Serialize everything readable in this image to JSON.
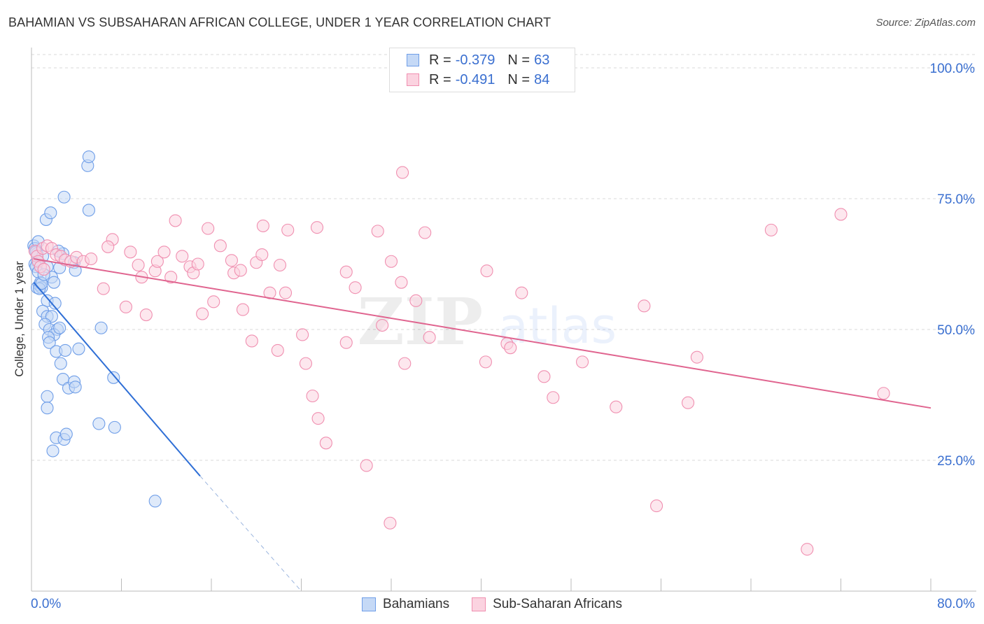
{
  "title": "BAHAMIAN VS SUBSAHARAN AFRICAN COLLEGE, UNDER 1 YEAR CORRELATION CHART",
  "source": "Source: ZipAtlas.com",
  "watermark": {
    "zip": "ZIP",
    "atlas": "atlas"
  },
  "legend_top": {
    "rows": [
      {
        "r_label": "R =",
        "r_value": "-0.379",
        "n_label": "N =",
        "n_value": "63",
        "color": "#6f9ee8"
      },
      {
        "r_label": "R =",
        "r_value": "-0.491",
        "n_label": "N =",
        "n_value": "84",
        "color": "#f08fb0"
      }
    ]
  },
  "legend_bottom": [
    {
      "label": "Bahamians",
      "color": "#6f9ee8"
    },
    {
      "label": "Sub-Saharan Africans",
      "color": "#f08fb0"
    }
  ],
  "chart_data": {
    "type": "scatter",
    "title": "BAHAMIAN VS SUBSAHARAN AFRICAN COLLEGE, UNDER 1 YEAR CORRELATION CHART",
    "xlabel": "",
    "ylabel": "College, Under 1 year",
    "xlim": [
      0,
      80
    ],
    "ylim": [
      0,
      100
    ],
    "x_tick_labels": [
      "0.0%",
      "80.0%"
    ],
    "y_tick_labels": [
      "25.0%",
      "50.0%",
      "75.0%",
      "100.0%"
    ],
    "y_ticks": [
      25,
      50,
      75,
      100
    ],
    "grid": true,
    "legend_position": "top-center",
    "series": [
      {
        "name": "Bahamians",
        "color": "#6f9ee8",
        "line_color": "#2f6fd6",
        "R": -0.379,
        "N": 63,
        "trend": {
          "x_start": 0.2,
          "y_start": 59.0,
          "x_solid_end": 15.0,
          "y_solid_end": 22.0,
          "x_dash_end": 24.0,
          "y_dash_end": 0.0
        },
        "points": [
          [
            0.2,
            66.0
          ],
          [
            0.3,
            65.5
          ],
          [
            0.4,
            65.0
          ],
          [
            0.5,
            64.5
          ],
          [
            0.5,
            63.0
          ],
          [
            0.6,
            66.8
          ],
          [
            0.4,
            64.8
          ],
          [
            0.3,
            62.5
          ],
          [
            0.4,
            62.0
          ],
          [
            0.6,
            61.0
          ],
          [
            0.5,
            58.0
          ],
          [
            0.7,
            58.5
          ],
          [
            0.8,
            59.0
          ],
          [
            0.9,
            58.0
          ],
          [
            1.0,
            64.0
          ],
          [
            1.4,
            62.0
          ],
          [
            1.8,
            60.0
          ],
          [
            2.0,
            59.0
          ],
          [
            2.5,
            61.8
          ],
          [
            2.8,
            64.5
          ],
          [
            2.4,
            65.0
          ],
          [
            3.8,
            62.8
          ],
          [
            3.9,
            61.3
          ],
          [
            1.3,
            71.0
          ],
          [
            1.7,
            72.3
          ],
          [
            2.9,
            75.3
          ],
          [
            5.1,
            72.8
          ],
          [
            5.0,
            81.3
          ],
          [
            5.1,
            83.0
          ],
          [
            1.4,
            55.5
          ],
          [
            2.1,
            55.0
          ],
          [
            1.0,
            53.5
          ],
          [
            1.4,
            52.5
          ],
          [
            1.8,
            52.5
          ],
          [
            1.2,
            51.0
          ],
          [
            1.6,
            50.0
          ],
          [
            2.3,
            50.0
          ],
          [
            2.0,
            49.0
          ],
          [
            2.5,
            50.3
          ],
          [
            1.5,
            48.5
          ],
          [
            1.6,
            47.5
          ],
          [
            2.2,
            45.8
          ],
          [
            3.0,
            46.0
          ],
          [
            4.2,
            46.3
          ],
          [
            2.6,
            43.5
          ],
          [
            6.2,
            50.3
          ],
          [
            2.8,
            40.5
          ],
          [
            3.3,
            38.8
          ],
          [
            3.8,
            40.0
          ],
          [
            3.9,
            39.0
          ],
          [
            7.3,
            40.8
          ],
          [
            1.4,
            37.2
          ],
          [
            1.4,
            35.0
          ],
          [
            6.0,
            32.0
          ],
          [
            7.4,
            31.3
          ],
          [
            2.2,
            29.3
          ],
          [
            2.9,
            29.0
          ],
          [
            3.1,
            30.0
          ],
          [
            1.9,
            26.8
          ],
          [
            11.0,
            17.2
          ],
          [
            0.7,
            57.8
          ],
          [
            0.9,
            58.8
          ],
          [
            1.1,
            60.5
          ]
        ]
      },
      {
        "name": "Sub-Saharan Africans",
        "color": "#f08fb0",
        "line_color": "#e0648f",
        "R": -0.491,
        "N": 84,
        "trend": {
          "x_start": 0.2,
          "y_start": 63.5,
          "x_end": 80.0,
          "y_end": 35.0
        },
        "points": [
          [
            0.3,
            65.0
          ],
          [
            0.5,
            64.0
          ],
          [
            0.6,
            63.0
          ],
          [
            1.0,
            65.5
          ],
          [
            1.4,
            66.0
          ],
          [
            1.8,
            65.5
          ],
          [
            2.2,
            64.3
          ],
          [
            2.6,
            64.0
          ],
          [
            3.0,
            63.3
          ],
          [
            3.5,
            63.0
          ],
          [
            4.0,
            63.8
          ],
          [
            4.6,
            63.0
          ],
          [
            5.3,
            63.5
          ],
          [
            0.8,
            62.0
          ],
          [
            1.1,
            61.5
          ],
          [
            7.2,
            67.2
          ],
          [
            6.8,
            65.8
          ],
          [
            8.8,
            64.8
          ],
          [
            9.5,
            62.3
          ],
          [
            9.8,
            60.0
          ],
          [
            11.0,
            61.2
          ],
          [
            11.2,
            63.0
          ],
          [
            11.8,
            64.8
          ],
          [
            12.4,
            60.0
          ],
          [
            13.4,
            64.0
          ],
          [
            14.1,
            62.0
          ],
          [
            14.4,
            60.8
          ],
          [
            14.8,
            62.5
          ],
          [
            12.8,
            70.8
          ],
          [
            15.7,
            69.3
          ],
          [
            16.8,
            66.0
          ],
          [
            17.8,
            63.2
          ],
          [
            18.0,
            60.8
          ],
          [
            18.6,
            61.3
          ],
          [
            20.0,
            62.8
          ],
          [
            20.5,
            64.3
          ],
          [
            20.6,
            69.8
          ],
          [
            22.1,
            62.3
          ],
          [
            22.8,
            69.0
          ],
          [
            25.4,
            69.5
          ],
          [
            28.0,
            61.0
          ],
          [
            30.8,
            68.8
          ],
          [
            32.0,
            63.0
          ],
          [
            32.9,
            59.0
          ],
          [
            35.0,
            68.5
          ],
          [
            40.5,
            61.2
          ],
          [
            6.4,
            57.8
          ],
          [
            8.4,
            54.3
          ],
          [
            10.2,
            52.8
          ],
          [
            16.2,
            55.3
          ],
          [
            15.2,
            53.0
          ],
          [
            18.8,
            53.8
          ],
          [
            21.2,
            57.0
          ],
          [
            22.6,
            57.0
          ],
          [
            28.8,
            58.0
          ],
          [
            34.2,
            55.5
          ],
          [
            19.6,
            47.8
          ],
          [
            21.9,
            46.0
          ],
          [
            24.1,
            49.0
          ],
          [
            24.4,
            43.5
          ],
          [
            28.0,
            47.5
          ],
          [
            31.2,
            50.8
          ],
          [
            33.2,
            43.5
          ],
          [
            35.4,
            48.5
          ],
          [
            40.4,
            43.8
          ],
          [
            42.3,
            47.3
          ],
          [
            42.6,
            46.5
          ],
          [
            43.6,
            57.0
          ],
          [
            45.6,
            41.0
          ],
          [
            46.4,
            37.0
          ],
          [
            49.0,
            43.8
          ],
          [
            52.0,
            35.2
          ],
          [
            54.5,
            54.5
          ],
          [
            58.4,
            36.0
          ],
          [
            59.2,
            44.7
          ],
          [
            65.8,
            69.0
          ],
          [
            72.0,
            72.0
          ],
          [
            75.8,
            37.8
          ],
          [
            25.0,
            37.3
          ],
          [
            25.5,
            33.0
          ],
          [
            26.2,
            28.3
          ],
          [
            29.8,
            24.0
          ],
          [
            33.0,
            80.0
          ],
          [
            31.9,
            13.0
          ],
          [
            55.6,
            16.3
          ],
          [
            69.0,
            8.0
          ]
        ]
      }
    ]
  }
}
